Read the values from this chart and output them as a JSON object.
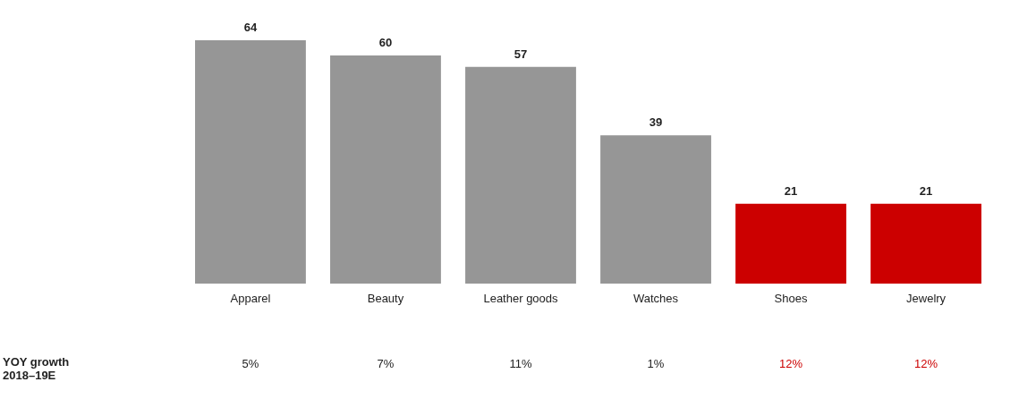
{
  "chart_data": {
    "type": "bar",
    "categories": [
      "Apparel",
      "Beauty",
      "Leather goods",
      "Watches",
      "Shoes",
      "Jewelry"
    ],
    "values": [
      64,
      60,
      57,
      39,
      21,
      21
    ],
    "colors": [
      "#969696",
      "#969696",
      "#969696",
      "#969696",
      "#cc0000",
      "#cc0000"
    ],
    "data_labels": true,
    "annotations": [
      "YOY growth\n2018–19E",
      "5%",
      "7%",
      "11%",
      "1%",
      "12%",
      "12%"
    ]
  }
}
